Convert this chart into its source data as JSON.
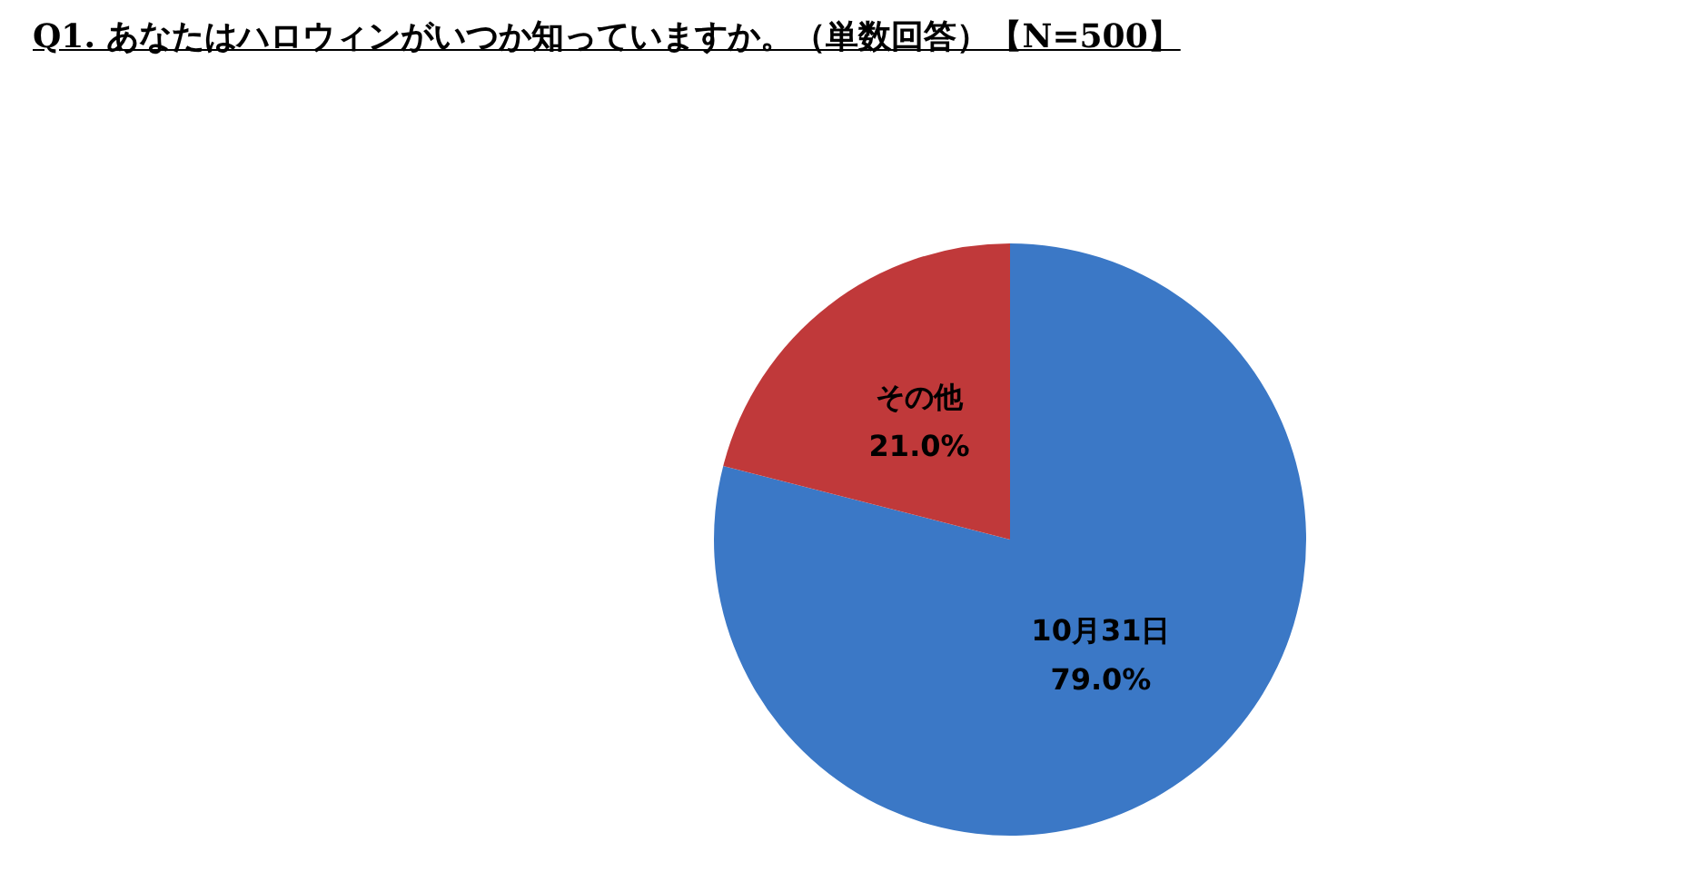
{
  "chart_data": {
    "type": "pie",
    "title": "Q1.  あなたはハロウィンがいつか知っていますか。（単数回答）【N=500】",
    "categories": [
      "10月31日",
      "その他"
    ],
    "values": [
      79.0,
      21.0
    ],
    "colors": [
      "#3b78c6",
      "#c0393a"
    ],
    "value_labels": [
      "79.0%",
      "21.0%"
    ],
    "legend": false
  }
}
